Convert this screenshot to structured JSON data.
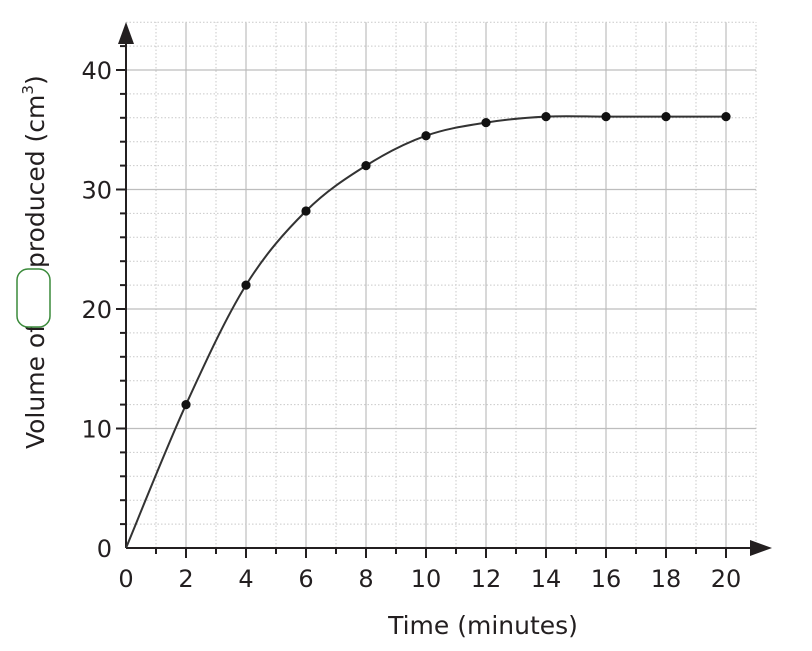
{
  "chart_data": {
    "type": "line",
    "title": "",
    "xlabel": "Time (minutes)",
    "ylabel_before_blank": "Volume of",
    "ylabel_after_blank": "produced (cm",
    "ylabel_superscript": "3",
    "ylabel_close": ")",
    "xlim": [
      0,
      21
    ],
    "ylim": [
      0,
      44
    ],
    "x_ticks": [
      0,
      2,
      4,
      6,
      8,
      10,
      12,
      14,
      16,
      18,
      20
    ],
    "x_tick_labels": [
      "0",
      "2",
      "4",
      "6",
      "8",
      "10",
      "12",
      "14",
      "16",
      "18",
      "20"
    ],
    "y_ticks": [
      0,
      10,
      20,
      30,
      40
    ],
    "y_tick_labels": [
      "0",
      "10",
      "20",
      "30",
      "40"
    ],
    "grid": true,
    "series": [
      {
        "x": [
          2,
          4,
          6,
          8,
          10,
          12,
          14,
          16,
          18,
          20
        ],
        "y": [
          12,
          22,
          28.2,
          32,
          34.5,
          35.6,
          36.1,
          36.1,
          36.1,
          36.1
        ]
      }
    ],
    "curve_starts_at": [
      0,
      0
    ]
  }
}
